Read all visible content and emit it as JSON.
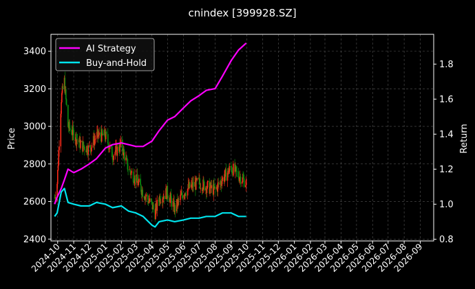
{
  "chart_data": {
    "type": "line",
    "title": "cnindex [399928.SZ]",
    "ylabel_left": "Price",
    "ylabel_right": "Return",
    "left_ylim": [
      2390,
      3490
    ],
    "right_ylim": [
      0.79,
      1.97
    ],
    "left_yticks": [
      "2400",
      "2600",
      "2800",
      "3000",
      "3200",
      "3400"
    ],
    "right_yticks": [
      "0.8",
      "1.0",
      "1.2",
      "1.4",
      "1.6",
      "1.8"
    ],
    "xticks": [
      "2024-10",
      "2024-11",
      "2024-12",
      "2025-01",
      "2025-02",
      "2025-03",
      "2025-04",
      "2025-05",
      "2025-06",
      "2025-07",
      "2025-08",
      "2025-09",
      "2025-10",
      "2025-11",
      "2025-12",
      "2026-01",
      "2026-02",
      "2026-03",
      "2026-04",
      "2026-05",
      "2026-06",
      "2026-07",
      "2026-08",
      "2026-09"
    ],
    "grid": true,
    "legend_position": "top-left",
    "colors": {
      "background": "#000000",
      "ai_strategy": "#ff00ff",
      "buy_and_hold": "#00e5ee",
      "candle_up": "#ff2a1a",
      "candle_down": "#0e8f0e",
      "grid": "#555555"
    },
    "series": [
      {
        "name": "AI Strategy",
        "axis": "right",
        "x": [
          "2024-09-25",
          "2024-09-30",
          "2024-10-08",
          "2024-10-14",
          "2024-10-21",
          "2024-11-01",
          "2024-11-15",
          "2024-12-01",
          "2024-12-15",
          "2025-01-01",
          "2025-01-15",
          "2025-02-01",
          "2025-02-15",
          "2025-03-01",
          "2025-03-15",
          "2025-04-01",
          "2025-04-15",
          "2025-05-01",
          "2025-05-15",
          "2025-06-01",
          "2025-06-15",
          "2025-07-01",
          "2025-07-15",
          "2025-08-01",
          "2025-08-15",
          "2025-09-01",
          "2025-09-15",
          "2025-09-30"
        ],
        "values": [
          1.0,
          1.04,
          1.09,
          1.14,
          1.2,
          1.18,
          1.2,
          1.23,
          1.26,
          1.32,
          1.34,
          1.35,
          1.34,
          1.33,
          1.33,
          1.36,
          1.42,
          1.48,
          1.5,
          1.55,
          1.59,
          1.62,
          1.65,
          1.66,
          1.73,
          1.82,
          1.88,
          1.92
        ]
      },
      {
        "name": "Buy-and-Hold",
        "axis": "right",
        "x": [
          "2024-09-25",
          "2024-09-30",
          "2024-10-08",
          "2024-10-14",
          "2024-10-21",
          "2024-11-01",
          "2024-11-15",
          "2024-12-01",
          "2024-12-15",
          "2025-01-01",
          "2025-01-15",
          "2025-02-01",
          "2025-02-15",
          "2025-03-01",
          "2025-03-15",
          "2025-04-01",
          "2025-04-07",
          "2025-04-15",
          "2025-05-01",
          "2025-05-15",
          "2025-06-01",
          "2025-06-15",
          "2025-07-01",
          "2025-07-15",
          "2025-08-01",
          "2025-08-15",
          "2025-09-01",
          "2025-09-15",
          "2025-09-30"
        ],
        "values": [
          0.93,
          0.95,
          1.07,
          1.09,
          1.01,
          1.0,
          0.99,
          0.99,
          1.01,
          1.0,
          0.98,
          0.99,
          0.96,
          0.95,
          0.93,
          0.88,
          0.87,
          0.9,
          0.91,
          0.9,
          0.91,
          0.92,
          0.92,
          0.93,
          0.93,
          0.95,
          0.95,
          0.93,
          0.93
        ]
      },
      {
        "name": "cnindex [399928.SZ]",
        "axis": "left",
        "type": "candlestick",
        "x": [
          "2024-09-25",
          "2024-09-30",
          "2024-10-08",
          "2024-10-14",
          "2024-10-21",
          "2024-11-01",
          "2024-11-15",
          "2024-12-01",
          "2024-12-15",
          "2025-01-01",
          "2025-01-15",
          "2025-02-01",
          "2025-02-15",
          "2025-03-01",
          "2025-03-15",
          "2025-04-01",
          "2025-04-07",
          "2025-04-15",
          "2025-05-01",
          "2025-05-15",
          "2025-06-01",
          "2025-06-15",
          "2025-07-01",
          "2025-07-15",
          "2025-08-01",
          "2025-08-15",
          "2025-09-01",
          "2025-09-15",
          "2025-09-30"
        ],
        "values": [
          2620,
          2700,
          3150,
          3240,
          3000,
          2960,
          2900,
          2880,
          2950,
          2950,
          2850,
          2900,
          2770,
          2720,
          2650,
          2580,
          2540,
          2620,
          2650,
          2560,
          2650,
          2680,
          2700,
          2680,
          2660,
          2720,
          2780,
          2740,
          2700
        ]
      }
    ]
  }
}
